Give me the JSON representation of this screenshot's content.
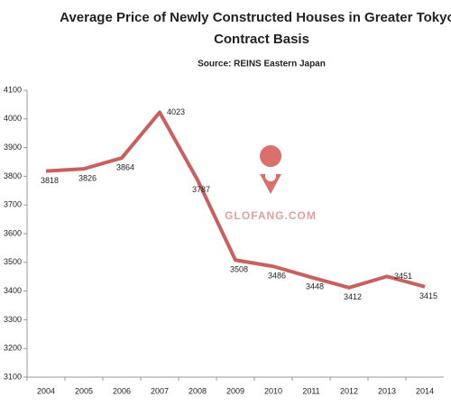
{
  "chart_data": {
    "type": "line",
    "title": [
      "Average Price of Newly Constructed Houses in Greater Tokyo -",
      "Contract Basis"
    ],
    "subtitle": "Source: REINS Eastern Japan",
    "annotation": "GLOFANG.COM",
    "categories": [
      "2004",
      "2005",
      "2006",
      "2007",
      "2008",
      "2009",
      "2010",
      "2011",
      "2012",
      "2013",
      "2014"
    ],
    "values": [
      3818,
      3826,
      3864,
      4023,
      3787,
      3508,
      3486,
      3448,
      3412,
      3451,
      3415
    ],
    "color": "#c9605e",
    "ylim": [
      3100,
      4100
    ],
    "yticks": [
      3100,
      3200,
      3300,
      3400,
      3500,
      3600,
      3700,
      3800,
      3900,
      4000,
      4100
    ]
  }
}
